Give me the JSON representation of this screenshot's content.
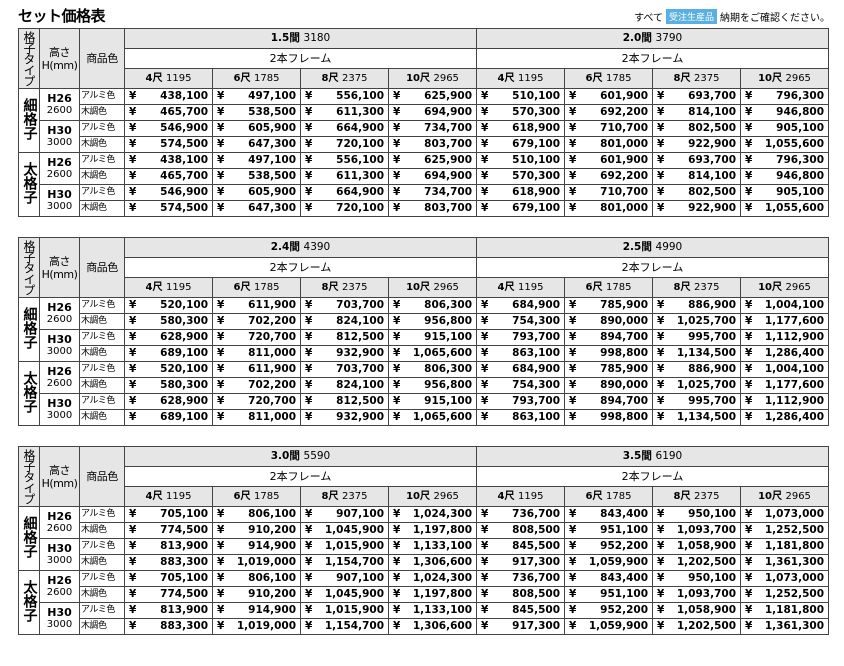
{
  "title": "セット価格表",
  "note": {
    "prefix": "すべて",
    "badge": "受注生産品",
    "suffix": "納期をご確認ください。"
  },
  "header": {
    "type": "格子タイプ",
    "height_line1": "高さ",
    "height_line2": "H(mm)",
    "color": "商品色",
    "frame": "2本フレーム"
  },
  "sizes": [
    {
      "label": "4尺",
      "mm": "1195"
    },
    {
      "label": "6尺",
      "mm": "1785"
    },
    {
      "label": "8尺",
      "mm": "2375"
    },
    {
      "label": "10尺",
      "mm": "2965"
    }
  ],
  "lattice_types": [
    "細格子",
    "太格子"
  ],
  "heights": [
    {
      "code": "H26",
      "mm": "2600"
    },
    {
      "code": "H30",
      "mm": "3000"
    }
  ],
  "colors": [
    "アルミ色",
    "木調色"
  ],
  "yen": "¥",
  "blocks": [
    {
      "widths": [
        {
          "label": "1.5間",
          "mm": "3180"
        },
        {
          "label": "2.0間",
          "mm": "3790"
        }
      ],
      "rows": [
        [
          "438,100",
          "497,100",
          "556,100",
          "625,900",
          "510,100",
          "601,900",
          "693,700",
          "796,300"
        ],
        [
          "465,700",
          "538,500",
          "611,300",
          "694,900",
          "570,300",
          "692,200",
          "814,100",
          "946,800"
        ],
        [
          "546,900",
          "605,900",
          "664,900",
          "734,700",
          "618,900",
          "710,700",
          "802,500",
          "905,100"
        ],
        [
          "574,500",
          "647,300",
          "720,100",
          "803,700",
          "679,100",
          "801,000",
          "922,900",
          "1,055,600"
        ],
        [
          "438,100",
          "497,100",
          "556,100",
          "625,900",
          "510,100",
          "601,900",
          "693,700",
          "796,300"
        ],
        [
          "465,700",
          "538,500",
          "611,300",
          "694,900",
          "570,300",
          "692,200",
          "814,100",
          "946,800"
        ],
        [
          "546,900",
          "605,900",
          "664,900",
          "734,700",
          "618,900",
          "710,700",
          "802,500",
          "905,100"
        ],
        [
          "574,500",
          "647,300",
          "720,100",
          "803,700",
          "679,100",
          "801,000",
          "922,900",
          "1,055,600"
        ]
      ]
    },
    {
      "widths": [
        {
          "label": "2.4間",
          "mm": "4390"
        },
        {
          "label": "2.5間",
          "mm": "4990"
        }
      ],
      "rows": [
        [
          "520,100",
          "611,900",
          "703,700",
          "806,300",
          "684,900",
          "785,900",
          "886,900",
          "1,004,100"
        ],
        [
          "580,300",
          "702,200",
          "824,100",
          "956,800",
          "754,300",
          "890,000",
          "1,025,700",
          "1,177,600"
        ],
        [
          "628,900",
          "720,700",
          "812,500",
          "915,100",
          "793,700",
          "894,700",
          "995,700",
          "1,112,900"
        ],
        [
          "689,100",
          "811,000",
          "932,900",
          "1,065,600",
          "863,100",
          "998,800",
          "1,134,500",
          "1,286,400"
        ],
        [
          "520,100",
          "611,900",
          "703,700",
          "806,300",
          "684,900",
          "785,900",
          "886,900",
          "1,004,100"
        ],
        [
          "580,300",
          "702,200",
          "824,100",
          "956,800",
          "754,300",
          "890,000",
          "1,025,700",
          "1,177,600"
        ],
        [
          "628,900",
          "720,700",
          "812,500",
          "915,100",
          "793,700",
          "894,700",
          "995,700",
          "1,112,900"
        ],
        [
          "689,100",
          "811,000",
          "932,900",
          "1,065,600",
          "863,100",
          "998,800",
          "1,134,500",
          "1,286,400"
        ]
      ]
    },
    {
      "widths": [
        {
          "label": "3.0間",
          "mm": "5590"
        },
        {
          "label": "3.5間",
          "mm": "6190"
        }
      ],
      "rows": [
        [
          "705,100",
          "806,100",
          "907,100",
          "1,024,300",
          "736,700",
          "843,400",
          "950,100",
          "1,073,000"
        ],
        [
          "774,500",
          "910,200",
          "1,045,900",
          "1,197,800",
          "808,500",
          "951,100",
          "1,093,700",
          "1,252,500"
        ],
        [
          "813,900",
          "914,900",
          "1,015,900",
          "1,133,100",
          "845,500",
          "952,200",
          "1,058,900",
          "1,181,800"
        ],
        [
          "883,300",
          "1,019,000",
          "1,154,700",
          "1,306,600",
          "917,300",
          "1,059,900",
          "1,202,500",
          "1,361,300"
        ],
        [
          "705,100",
          "806,100",
          "907,100",
          "1,024,300",
          "736,700",
          "843,400",
          "950,100",
          "1,073,000"
        ],
        [
          "774,500",
          "910,200",
          "1,045,900",
          "1,197,800",
          "808,500",
          "951,100",
          "1,093,700",
          "1,252,500"
        ],
        [
          "813,900",
          "914,900",
          "1,015,900",
          "1,133,100",
          "845,500",
          "952,200",
          "1,058,900",
          "1,181,800"
        ],
        [
          "883,300",
          "1,019,000",
          "1,154,700",
          "1,306,600",
          "917,300",
          "1,059,900",
          "1,202,500",
          "1,361,300"
        ]
      ]
    }
  ]
}
